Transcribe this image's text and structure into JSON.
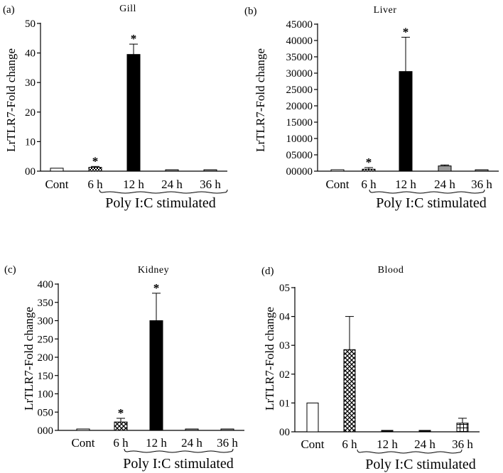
{
  "chart_data": [
    {
      "type": "bar",
      "panel_label": "(a)",
      "title": "Gill",
      "ylabel": "LrTLR7-Fold change",
      "xlabel": "Poly I:C stimulated",
      "categories": [
        "Cont",
        "6 h",
        "12 h",
        "24 h",
        "36 h"
      ],
      "values": [
        1,
        1.3,
        39.5,
        0.2,
        0.2
      ],
      "errors": [
        0,
        0.3,
        3.5,
        0,
        0
      ],
      "significant": [
        false,
        true,
        true,
        false,
        false
      ],
      "star_symbol": "*",
      "ylim": [
        0,
        50
      ],
      "ytick_values": [
        0,
        10,
        20,
        30,
        40,
        50
      ],
      "ytick_labels": [
        "00",
        "10",
        "20",
        "30",
        "40",
        "50"
      ],
      "fills": [
        "white",
        "checker",
        "black",
        "gray",
        "gray"
      ]
    },
    {
      "type": "bar",
      "panel_label": "(b)",
      "title": "Liver",
      "ylabel": "LrTLR7-Fold change",
      "xlabel": "Poly I:C stimulated",
      "categories": [
        "Cont",
        "6 h",
        "12 h",
        "24 h",
        "36 h"
      ],
      "values": [
        1,
        600,
        30500,
        1600,
        150
      ],
      "errors": [
        0,
        500,
        10500,
        300,
        0
      ],
      "significant": [
        false,
        true,
        true,
        false,
        false
      ],
      "star_symbol": "*",
      "ylim": [
        0,
        45000
      ],
      "ytick_values": [
        0,
        5000,
        10000,
        15000,
        20000,
        25000,
        30000,
        35000,
        40000,
        45000
      ],
      "ytick_labels": [
        "00000",
        "05000",
        "10000",
        "15000",
        "20000",
        "25000",
        "30000",
        "35000",
        "40000",
        "45000"
      ],
      "fills": [
        "white",
        "checker",
        "black",
        "gray",
        "gray"
      ]
    },
    {
      "type": "bar",
      "panel_label": "(c)",
      "title": "Kidney",
      "ylabel": "LrTLR7-Fold change",
      "xlabel": "Poly I:C stimulated",
      "categories": [
        "Cont",
        "6 h",
        "12 h",
        "24 h",
        "36 h"
      ],
      "values": [
        1,
        23,
        300,
        1,
        1
      ],
      "errors": [
        0,
        10,
        75,
        0,
        0
      ],
      "significant": [
        false,
        true,
        true,
        false,
        false
      ],
      "star_symbol": "*",
      "ylim": [
        0,
        400
      ],
      "ytick_values": [
        0,
        50,
        100,
        150,
        200,
        250,
        300,
        350,
        400
      ],
      "ytick_labels": [
        "000",
        "050",
        "100",
        "150",
        "200",
        "250",
        "300",
        "350",
        "400"
      ],
      "fills": [
        "white",
        "cross",
        "black",
        "gray",
        "gray"
      ]
    },
    {
      "type": "bar",
      "panel_label": "(d)",
      "title": "Blood",
      "ylabel": "LrTLR7-Fold change",
      "xlabel": "Poly I:C stimulated",
      "categories": [
        "Cont",
        "6 h",
        "12 h",
        "24 h",
        "36 h"
      ],
      "values": [
        0.1,
        0.285,
        0.001,
        0.001,
        0.03
      ],
      "errors": [
        0,
        0.115,
        0,
        0,
        0.017
      ],
      "significant": [
        false,
        false,
        false,
        false,
        false
      ],
      "star_symbol": "*",
      "ylim": [
        0,
        0.5
      ],
      "ytick_values": [
        0,
        0.1,
        0.2,
        0.3,
        0.4,
        0.5
      ],
      "ytick_labels": [
        "00",
        "01",
        "02",
        "03",
        "04",
        "05"
      ],
      "fills": [
        "white",
        "cross",
        "black",
        "black",
        "grid"
      ]
    }
  ]
}
